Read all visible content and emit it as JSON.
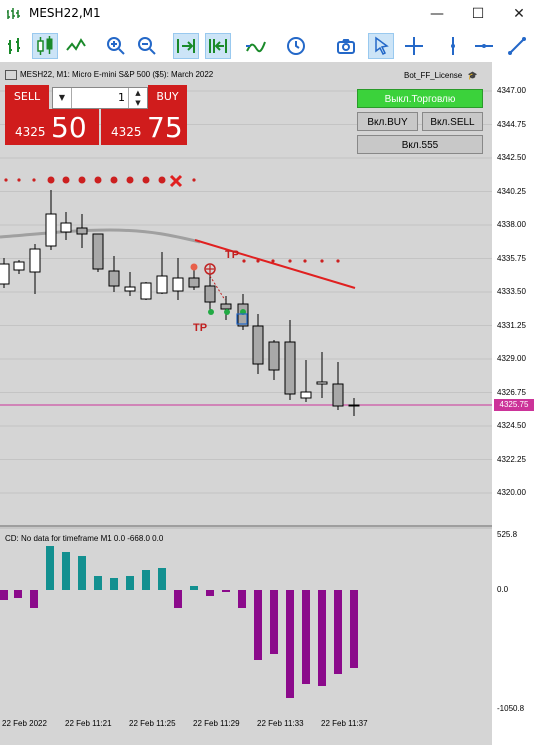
{
  "window": {
    "title": "MESH22,M1",
    "icon": "chart-window-icon",
    "controls": [
      "minimize-icon",
      "maximize-icon",
      "close-icon"
    ]
  },
  "toolbar": {
    "items": [
      "bar-chart-icon",
      "candles-icon",
      "line-chart-icon",
      "zoom-in-icon",
      "zoom-out-icon",
      "tile-left-icon",
      "tile-right-icon",
      "indicators-icon",
      "periods-icon",
      "screenshot-icon",
      "cursor-icon",
      "crosshair-icon",
      "vertical-line-icon",
      "horizontal-line-icon",
      "trendline-icon"
    ]
  },
  "chart": {
    "info": "MESH22, M1:  Micro E-mini S&P 500 ($5): March 2022",
    "license": "Bot_FF_License",
    "colors": {
      "background": "#d5d5d5",
      "bull": "#ffffff",
      "bear": "#a8a8a8",
      "sell": "#d01c1c",
      "ma": "#a0a0a0",
      "trend": "#e02020",
      "priceline": "#cc3399",
      "histo_pos": "#139090",
      "histo_neg": "#8b0a8b"
    }
  },
  "trade_panel": {
    "sell_label": "SELL",
    "buy_label": "BUY",
    "lot": "1",
    "sell_small": "4325",
    "sell_big": "50",
    "buy_small": "4325",
    "buy_big": "75"
  },
  "bot_panel": {
    "trade_toggle": "Выкл.Торговлю",
    "buy_toggle": "Вкл.BUY",
    "sell_toggle": "Вкл.SELL",
    "magic_toggle": "Вкл.555"
  },
  "price_axis": [
    "4347.00",
    "4344.75",
    "4342.50",
    "4340.25",
    "4338.00",
    "4335.75",
    "4333.50",
    "4331.25",
    "4329.00",
    "4326.75",
    "4324.50",
    "4322.25",
    "4320.00"
  ],
  "current_price": "4325.75",
  "markers": {
    "tp1": "TP",
    "tp2": "TP"
  },
  "indicator": {
    "label": "CD: No data for timeframe M1 0.0 -668.0 0.0",
    "axis": [
      "525.8",
      "0.0",
      "-1050.8"
    ]
  },
  "time_axis": [
    "22 Feb 2022",
    "22 Feb 11:21",
    "22 Feb 11:25",
    "22 Feb 11:29",
    "22 Feb 11:33",
    "22 Feb 11:37"
  ]
}
